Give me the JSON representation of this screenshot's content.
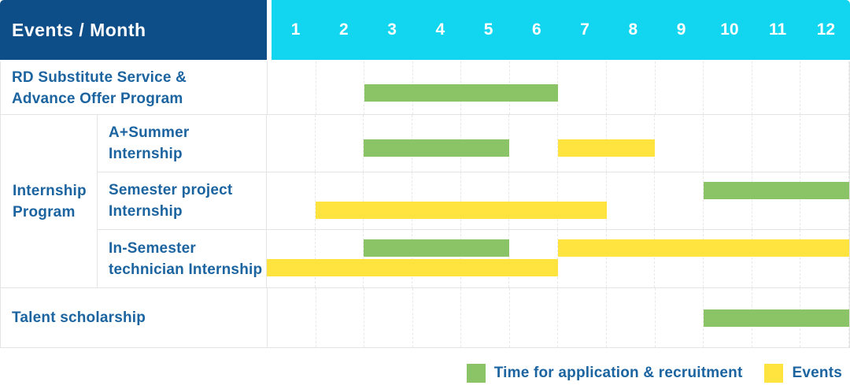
{
  "header": {
    "title": "Events / Month"
  },
  "colors": {
    "navy": "#0d4d88",
    "cyan": "#12d5ef",
    "application": "#8bc466",
    "event": "#ffe33e",
    "text_blue": "#1c64a0",
    "grid_solid": "#e4e4e4",
    "grid_dashed": "#e8e8e8"
  },
  "chart_data": {
    "type": "gantt",
    "unit": "month",
    "months": [
      "1",
      "2",
      "3",
      "4",
      "5",
      "6",
      "7",
      "8",
      "9",
      "10",
      "11",
      "12"
    ],
    "x_range": [
      1,
      12
    ],
    "grid": "dashed-vertical",
    "legend_position": "bottom-right",
    "group_label": "Internship Program",
    "group_label_lines": [
      "Internship",
      "Program"
    ],
    "rows": [
      {
        "group": "",
        "label": "RD Substitute Service & Advance Offer Program",
        "label_lines": [
          "RD Substitute Service &",
          "Advance Offer Program"
        ],
        "bars": [
          {
            "kind": "application",
            "start_month": 3,
            "end_month": 6,
            "lane": "midlow"
          }
        ]
      },
      {
        "group": "Internship Program",
        "label": "A+Summer Internship",
        "label_lines": [
          "A+Summer",
          "Internship"
        ],
        "bars": [
          {
            "kind": "application",
            "start_month": 3,
            "end_month": 5,
            "lane": "midlow"
          },
          {
            "kind": "event",
            "start_month": 7,
            "end_month": 8,
            "lane": "midlow"
          }
        ]
      },
      {
        "group": "Internship Program",
        "label": "Semester project Internship",
        "label_lines": [
          "Semester project",
          "Internship"
        ],
        "bars": [
          {
            "kind": "application",
            "start_month": 10,
            "end_month": 12,
            "lane": "upper"
          },
          {
            "kind": "event",
            "start_month": 2,
            "end_month": 7,
            "lane": "lower"
          }
        ]
      },
      {
        "group": "Internship Program",
        "label": "In-Semester technician Internship",
        "label_lines": [
          "In-Semester",
          "technician Internship"
        ],
        "bars": [
          {
            "kind": "application",
            "start_month": 3,
            "end_month": 5,
            "lane": "upper"
          },
          {
            "kind": "event",
            "start_month": 7,
            "end_month": 12,
            "lane": "upper"
          },
          {
            "kind": "event",
            "start_month": 1,
            "end_month": 6,
            "lane": "lower"
          }
        ]
      },
      {
        "group": "",
        "label": "Talent scholarship",
        "label_lines": [
          "Talent scholarship"
        ],
        "bars": [
          {
            "kind": "application",
            "start_month": 10,
            "end_month": 12,
            "lane": "mid"
          }
        ]
      }
    ],
    "legend": [
      {
        "kind": "application",
        "label": "Time for application & recruitment",
        "color": "#8bc466"
      },
      {
        "kind": "event",
        "label": "Events",
        "color": "#ffe33e"
      }
    ]
  }
}
